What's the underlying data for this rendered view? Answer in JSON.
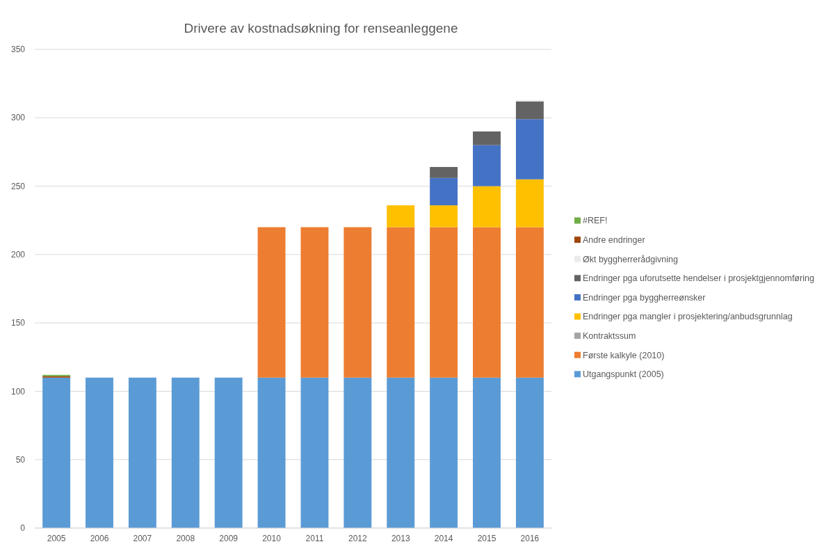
{
  "chart_data": {
    "type": "bar",
    "title": "Drivere av kostnadsøkning for renseanleggene",
    "categories": [
      "2005",
      "2006",
      "2007",
      "2008",
      "2009",
      "2010",
      "2011",
      "2012",
      "2013",
      "2014",
      "2015",
      "2016"
    ],
    "stacked": true,
    "ylim": [
      0,
      350
    ],
    "yticks": [
      0,
      50,
      100,
      150,
      200,
      250,
      300,
      350
    ],
    "grid": "y",
    "legend": "right",
    "series": [
      {
        "name": "Utgangspunkt (2005)",
        "color": "#5b9bd5",
        "values": [
          110,
          110,
          110,
          110,
          110,
          110,
          110,
          110,
          110,
          110,
          110,
          110
        ]
      },
      {
        "name": "Første kalkyle (2010)",
        "color": "#ed7d31",
        "values": [
          null,
          null,
          null,
          null,
          null,
          110,
          110,
          110,
          110,
          110,
          110,
          110
        ]
      },
      {
        "name": "Kontraktssum",
        "color": "#a5a5a5",
        "values": [
          null,
          null,
          null,
          null,
          null,
          null,
          null,
          null,
          null,
          null,
          null,
          null
        ]
      },
      {
        "name": "Endringer pga mangler i prosjektering/anbudsgrunnlag",
        "color": "#ffc000",
        "values": [
          null,
          null,
          null,
          null,
          null,
          null,
          null,
          null,
          16,
          16,
          30,
          35
        ]
      },
      {
        "name": "Endringer pga byggherreønsker",
        "color": "#4472c4",
        "values": [
          null,
          null,
          null,
          null,
          null,
          null,
          null,
          null,
          null,
          20,
          30,
          44
        ]
      },
      {
        "name": "Endringer pga uforutsette hendelser i prosjektgjennomføring",
        "color": "#636363",
        "values": [
          null,
          null,
          null,
          null,
          null,
          null,
          null,
          null,
          null,
          8,
          10,
          13
        ]
      },
      {
        "name": "Økt byggherrerådgivning",
        "color": "#ebebeb",
        "values": [
          null,
          null,
          null,
          null,
          null,
          null,
          null,
          null,
          null,
          null,
          null,
          1
        ]
      },
      {
        "name": "Andre endringer",
        "color": "#9e480e",
        "values": [
          1,
          null,
          null,
          null,
          null,
          null,
          null,
          null,
          null,
          null,
          null,
          null
        ]
      },
      {
        "name": "#REF!",
        "color": "#70ad47",
        "values": [
          1,
          null,
          null,
          null,
          null,
          null,
          null,
          null,
          null,
          null,
          null,
          null
        ]
      }
    ]
  }
}
